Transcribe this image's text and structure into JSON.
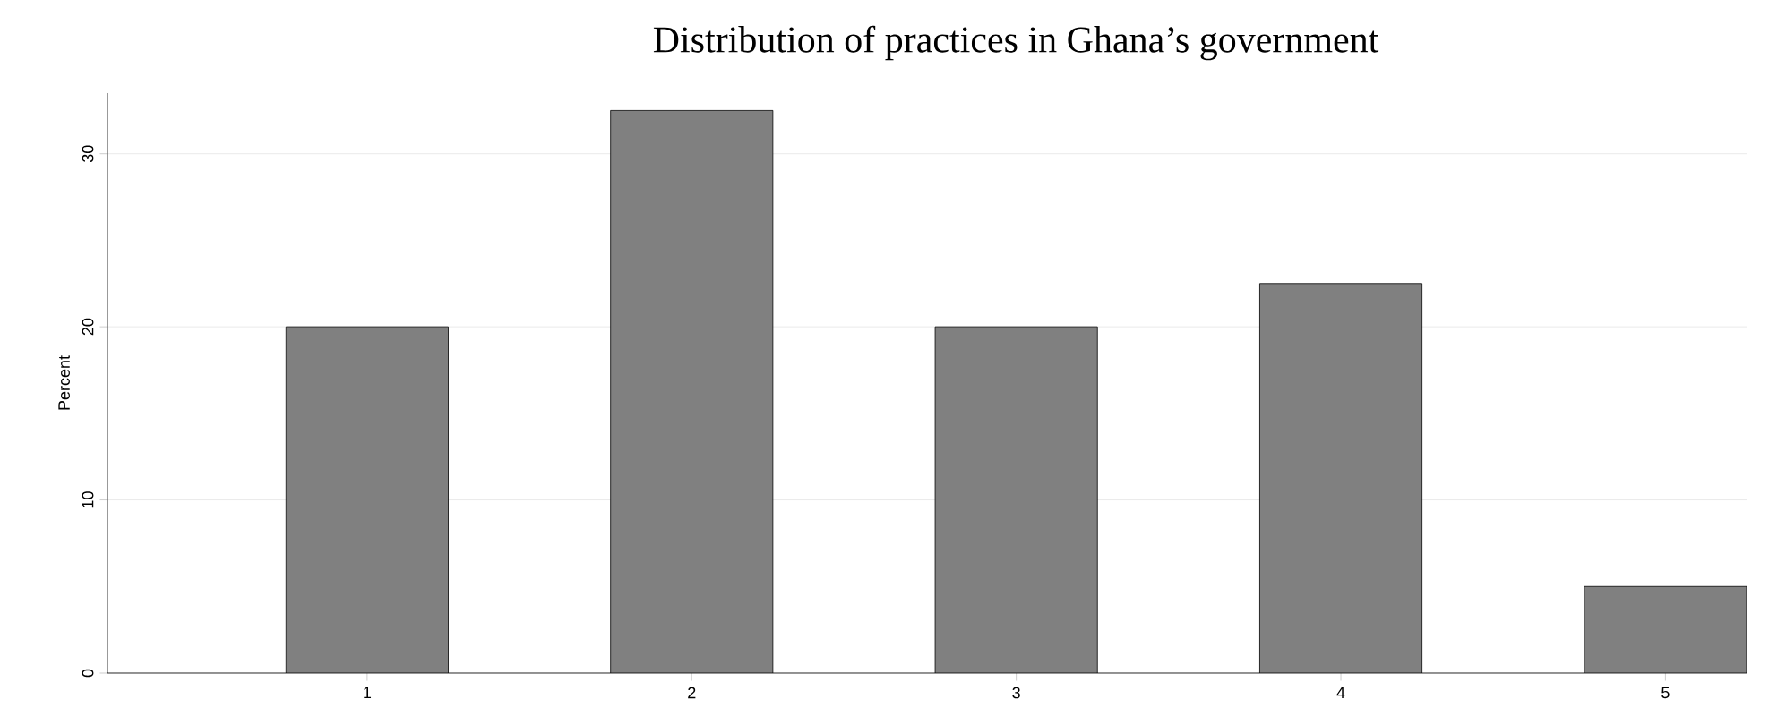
{
  "chart_data": {
    "type": "bar",
    "title": "Distribution of practices in Ghana’s government",
    "ylabel": "Percent",
    "x": [
      1,
      2,
      3,
      4,
      5
    ],
    "values": [
      20,
      32.5,
      20,
      22.5,
      5
    ],
    "color": "#808080",
    "xlim": [
      0.2,
      5.25
    ],
    "ylim": [
      0,
      33.5
    ],
    "xticks": [
      1,
      2,
      3,
      4,
      5
    ],
    "yticks": [
      0,
      10,
      20,
      30
    ],
    "grid": "y"
  }
}
